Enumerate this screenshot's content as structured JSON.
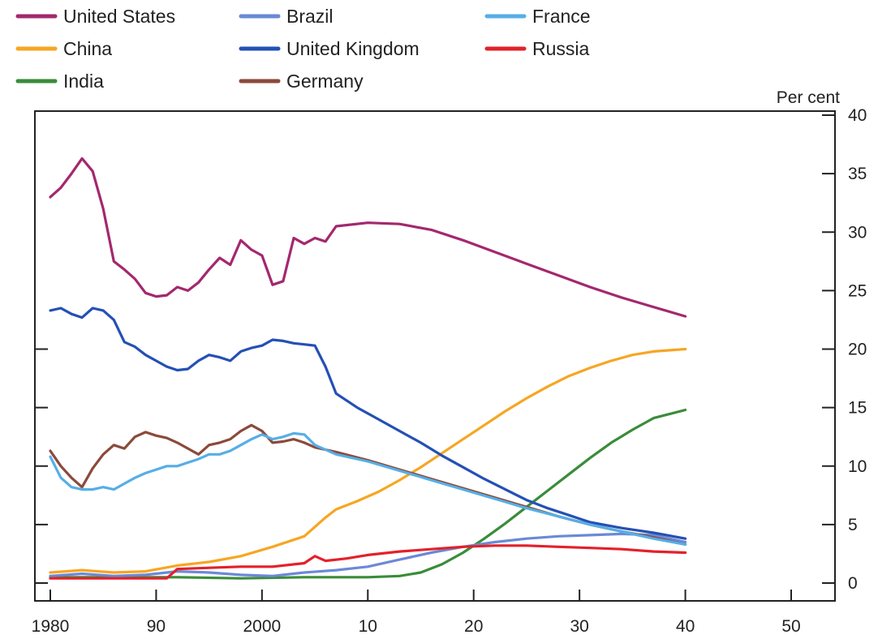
{
  "chart_data": {
    "type": "line",
    "title": "",
    "xlabel": "",
    "ylabel": "Per cent",
    "ylim": [
      0,
      40
    ],
    "xlim": [
      1980,
      2050
    ],
    "x_ticks": [
      1980,
      1990,
      2000,
      2010,
      2020,
      2030,
      2040,
      2050
    ],
    "x_tick_labels": [
      "1980",
      "90",
      "2000",
      "10",
      "20",
      "30",
      "40",
      "50"
    ],
    "y_ticks_right": [
      0,
      5,
      10,
      15,
      20,
      25,
      30,
      35,
      40
    ],
    "y_tick_labels_right": [
      "0",
      "5",
      "10",
      "15",
      "20",
      "25",
      "30",
      "35",
      "40"
    ],
    "y_ticks_left": [
      0,
      5,
      10,
      15,
      20
    ],
    "legend_position": "top",
    "grid": false,
    "series": [
      {
        "name": "United States",
        "color": "#a3286f",
        "points": [
          [
            1980,
            33.0
          ],
          [
            1981,
            33.8
          ],
          [
            1982,
            35.0
          ],
          [
            1983,
            36.3
          ],
          [
            1984,
            35.2
          ],
          [
            1985,
            32.0
          ],
          [
            1986,
            27.5
          ],
          [
            1987,
            26.8
          ],
          [
            1988,
            26.0
          ],
          [
            1989,
            24.8
          ],
          [
            1990,
            24.5
          ],
          [
            1991,
            24.6
          ],
          [
            1992,
            25.3
          ],
          [
            1993,
            25.0
          ],
          [
            1994,
            25.7
          ],
          [
            1995,
            26.8
          ],
          [
            1996,
            27.8
          ],
          [
            1997,
            27.2
          ],
          [
            1998,
            29.3
          ],
          [
            1999,
            28.5
          ],
          [
            2000,
            28.0
          ],
          [
            2001,
            25.5
          ],
          [
            2002,
            25.8
          ],
          [
            2003,
            29.5
          ],
          [
            2004,
            29.0
          ],
          [
            2005,
            29.5
          ],
          [
            2006,
            29.2
          ],
          [
            2007,
            30.5
          ],
          [
            2010,
            30.8
          ],
          [
            2013,
            30.7
          ],
          [
            2016,
            30.2
          ],
          [
            2019,
            29.3
          ],
          [
            2022,
            28.3
          ],
          [
            2025,
            27.3
          ],
          [
            2028,
            26.3
          ],
          [
            2031,
            25.3
          ],
          [
            2034,
            24.4
          ],
          [
            2037,
            23.6
          ],
          [
            2040,
            22.8
          ]
        ]
      },
      {
        "name": "China",
        "color": "#f6a623",
        "points": [
          [
            1980,
            0.9
          ],
          [
            1983,
            1.1
          ],
          [
            1986,
            0.9
          ],
          [
            1989,
            1.0
          ],
          [
            1992,
            1.5
          ],
          [
            1995,
            1.8
          ],
          [
            1998,
            2.3
          ],
          [
            2001,
            3.1
          ],
          [
            2004,
            4.0
          ],
          [
            2006,
            5.6
          ],
          [
            2007,
            6.3
          ],
          [
            2009,
            7.0
          ],
          [
            2011,
            7.8
          ],
          [
            2013,
            8.8
          ],
          [
            2015,
            9.9
          ],
          [
            2017,
            11.1
          ],
          [
            2019,
            12.3
          ],
          [
            2021,
            13.5
          ],
          [
            2023,
            14.7
          ],
          [
            2025,
            15.8
          ],
          [
            2027,
            16.8
          ],
          [
            2029,
            17.7
          ],
          [
            2031,
            18.4
          ],
          [
            2033,
            19.0
          ],
          [
            2035,
            19.5
          ],
          [
            2037,
            19.8
          ],
          [
            2040,
            20.0
          ]
        ]
      },
      {
        "name": "India",
        "color": "#3a8c3a",
        "points": [
          [
            1980,
            0.5
          ],
          [
            1986,
            0.5
          ],
          [
            1992,
            0.5
          ],
          [
            1998,
            0.4
          ],
          [
            2004,
            0.5
          ],
          [
            2010,
            0.5
          ],
          [
            2013,
            0.6
          ],
          [
            2015,
            0.9
          ],
          [
            2017,
            1.6
          ],
          [
            2019,
            2.6
          ],
          [
            2021,
            3.8
          ],
          [
            2023,
            5.1
          ],
          [
            2025,
            6.5
          ],
          [
            2027,
            7.9
          ],
          [
            2029,
            9.3
          ],
          [
            2031,
            10.7
          ],
          [
            2033,
            12.0
          ],
          [
            2035,
            13.1
          ],
          [
            2037,
            14.1
          ],
          [
            2040,
            14.8
          ]
        ]
      },
      {
        "name": "Brazil",
        "color": "#6b89d6",
        "points": [
          [
            1980,
            0.6
          ],
          [
            1983,
            0.8
          ],
          [
            1986,
            0.6
          ],
          [
            1989,
            0.7
          ],
          [
            1992,
            1.0
          ],
          [
            1995,
            0.9
          ],
          [
            1998,
            0.7
          ],
          [
            2001,
            0.6
          ],
          [
            2004,
            0.9
          ],
          [
            2007,
            1.1
          ],
          [
            2010,
            1.4
          ],
          [
            2013,
            2.0
          ],
          [
            2016,
            2.6
          ],
          [
            2019,
            3.1
          ],
          [
            2022,
            3.5
          ],
          [
            2025,
            3.8
          ],
          [
            2028,
            4.0
          ],
          [
            2031,
            4.1
          ],
          [
            2034,
            4.2
          ],
          [
            2037,
            4.1
          ],
          [
            2040,
            3.5
          ]
        ]
      },
      {
        "name": "United Kingdom",
        "color": "#2450b5",
        "points": [
          [
            1980,
            23.3
          ],
          [
            1981,
            23.5
          ],
          [
            1982,
            23.0
          ],
          [
            1983,
            22.7
          ],
          [
            1984,
            23.5
          ],
          [
            1985,
            23.3
          ],
          [
            1986,
            22.5
          ],
          [
            1987,
            20.6
          ],
          [
            1988,
            20.2
          ],
          [
            1989,
            19.5
          ],
          [
            1990,
            19.0
          ],
          [
            1991,
            18.5
          ],
          [
            1992,
            18.2
          ],
          [
            1993,
            18.3
          ],
          [
            1994,
            19.0
          ],
          [
            1995,
            19.5
          ],
          [
            1996,
            19.3
          ],
          [
            1997,
            19.0
          ],
          [
            1998,
            19.8
          ],
          [
            1999,
            20.1
          ],
          [
            2000,
            20.3
          ],
          [
            2001,
            20.8
          ],
          [
            2002,
            20.7
          ],
          [
            2003,
            20.5
          ],
          [
            2004,
            20.4
          ],
          [
            2005,
            20.3
          ],
          [
            2006,
            18.5
          ],
          [
            2007,
            16.2
          ],
          [
            2009,
            15.0
          ],
          [
            2011,
            14.0
          ],
          [
            2013,
            13.0
          ],
          [
            2015,
            12.0
          ],
          [
            2017,
            10.9
          ],
          [
            2019,
            9.9
          ],
          [
            2021,
            8.9
          ],
          [
            2023,
            8.0
          ],
          [
            2025,
            7.1
          ],
          [
            2027,
            6.4
          ],
          [
            2029,
            5.8
          ],
          [
            2031,
            5.2
          ],
          [
            2034,
            4.7
          ],
          [
            2037,
            4.3
          ],
          [
            2040,
            3.8
          ]
        ]
      },
      {
        "name": "Germany",
        "color": "#8b4a3a",
        "points": [
          [
            1980,
            11.3
          ],
          [
            1981,
            10.0
          ],
          [
            1982,
            9.0
          ],
          [
            1983,
            8.2
          ],
          [
            1984,
            9.8
          ],
          [
            1985,
            11.0
          ],
          [
            1986,
            11.8
          ],
          [
            1987,
            11.5
          ],
          [
            1988,
            12.5
          ],
          [
            1989,
            12.9
          ],
          [
            1990,
            12.6
          ],
          [
            1991,
            12.4
          ],
          [
            1992,
            12.0
          ],
          [
            1993,
            11.5
          ],
          [
            1994,
            11.0
          ],
          [
            1995,
            11.8
          ],
          [
            1996,
            12.0
          ],
          [
            1997,
            12.3
          ],
          [
            1998,
            13.0
          ],
          [
            1999,
            13.5
          ],
          [
            2000,
            13.0
          ],
          [
            2001,
            12.0
          ],
          [
            2002,
            12.1
          ],
          [
            2003,
            12.3
          ],
          [
            2004,
            12.0
          ],
          [
            2005,
            11.6
          ],
          [
            2007,
            11.2
          ],
          [
            2010,
            10.5
          ],
          [
            2013,
            9.7
          ],
          [
            2016,
            8.9
          ],
          [
            2019,
            8.1
          ],
          [
            2022,
            7.3
          ],
          [
            2025,
            6.5
          ],
          [
            2028,
            5.7
          ],
          [
            2031,
            5.0
          ],
          [
            2034,
            4.4
          ],
          [
            2037,
            3.9
          ],
          [
            2040,
            3.3
          ]
        ]
      },
      {
        "name": "France",
        "color": "#56aee6",
        "points": [
          [
            1980,
            10.8
          ],
          [
            1981,
            9.0
          ],
          [
            1982,
            8.2
          ],
          [
            1983,
            8.0
          ],
          [
            1984,
            8.0
          ],
          [
            1985,
            8.2
          ],
          [
            1986,
            8.0
          ],
          [
            1987,
            8.5
          ],
          [
            1988,
            9.0
          ],
          [
            1989,
            9.4
          ],
          [
            1990,
            9.7
          ],
          [
            1991,
            10.0
          ],
          [
            1992,
            10.0
          ],
          [
            1993,
            10.3
          ],
          [
            1994,
            10.6
          ],
          [
            1995,
            11.0
          ],
          [
            1996,
            11.0
          ],
          [
            1997,
            11.3
          ],
          [
            1998,
            11.8
          ],
          [
            1999,
            12.3
          ],
          [
            2000,
            12.7
          ],
          [
            2001,
            12.3
          ],
          [
            2002,
            12.5
          ],
          [
            2003,
            12.8
          ],
          [
            2004,
            12.7
          ],
          [
            2005,
            11.8
          ],
          [
            2007,
            11.0
          ],
          [
            2010,
            10.4
          ],
          [
            2013,
            9.6
          ],
          [
            2016,
            8.8
          ],
          [
            2019,
            8.0
          ],
          [
            2022,
            7.2
          ],
          [
            2025,
            6.4
          ],
          [
            2028,
            5.7
          ],
          [
            2031,
            5.0
          ],
          [
            2034,
            4.4
          ],
          [
            2037,
            3.8
          ],
          [
            2040,
            3.3
          ]
        ]
      },
      {
        "name": "Russia",
        "color": "#e3212a",
        "points": [
          [
            1980,
            0.4
          ],
          [
            1985,
            0.4
          ],
          [
            1991,
            0.4
          ],
          [
            1992,
            1.2
          ],
          [
            1995,
            1.3
          ],
          [
            1998,
            1.4
          ],
          [
            2001,
            1.4
          ],
          [
            2004,
            1.7
          ],
          [
            2005,
            2.3
          ],
          [
            2006,
            1.9
          ],
          [
            2008,
            2.1
          ],
          [
            2010,
            2.4
          ],
          [
            2013,
            2.7
          ],
          [
            2016,
            2.9
          ],
          [
            2019,
            3.1
          ],
          [
            2022,
            3.2
          ],
          [
            2025,
            3.2
          ],
          [
            2028,
            3.1
          ],
          [
            2031,
            3.0
          ],
          [
            2034,
            2.9
          ],
          [
            2037,
            2.7
          ],
          [
            2040,
            2.6
          ]
        ]
      }
    ]
  }
}
